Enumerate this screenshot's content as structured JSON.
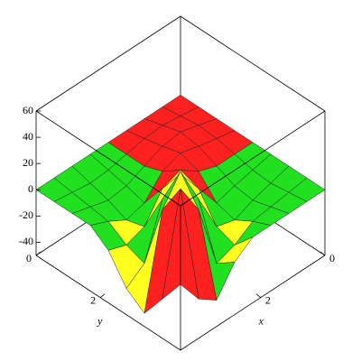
{
  "chart_data": {
    "type": "surface3d",
    "x": [
      0,
      0.5625,
      1.125,
      1.6875,
      2.25,
      2.8125,
      3.375,
      3.9375,
      4.5
    ],
    "y": [
      0,
      0.5625,
      1.125,
      1.6875,
      2.25,
      2.8125,
      3.375,
      3.9375,
      4.5
    ],
    "z": [
      [
        0,
        0,
        0,
        0,
        0,
        0,
        0,
        0,
        0
      ],
      [
        0,
        2,
        4,
        3,
        0,
        -3,
        -4,
        -2,
        0
      ],
      [
        0,
        4,
        8,
        6,
        0,
        -6,
        -8,
        -4,
        0
      ],
      [
        0,
        3,
        6,
        10,
        5,
        -10,
        -14,
        -6,
        0
      ],
      [
        0,
        0,
        0,
        5,
        15,
        10,
        -10,
        -15,
        0
      ],
      [
        0,
        -3,
        -6,
        -10,
        10,
        30,
        20,
        -20,
        -10
      ],
      [
        0,
        -4,
        -8,
        -14,
        -10,
        20,
        50,
        30,
        -30
      ],
      [
        0,
        -2,
        -4,
        -6,
        -15,
        -20,
        30,
        55,
        -20
      ],
      [
        0,
        0,
        0,
        0,
        -10,
        -30,
        -40,
        -20,
        0
      ]
    ],
    "colors": [
      "#ff2020",
      "#ffff20",
      "#20e020"
    ],
    "xlabel": "x",
    "ylabel": "y",
    "xlim": [
      0,
      4.5
    ],
    "ylim": [
      0,
      4.5
    ],
    "zlim": [
      -50,
      60
    ],
    "xticks": [
      0,
      2
    ],
    "yticks": [
      0,
      2
    ],
    "zticks": [
      -40,
      -20,
      0,
      20,
      40,
      60
    ]
  }
}
